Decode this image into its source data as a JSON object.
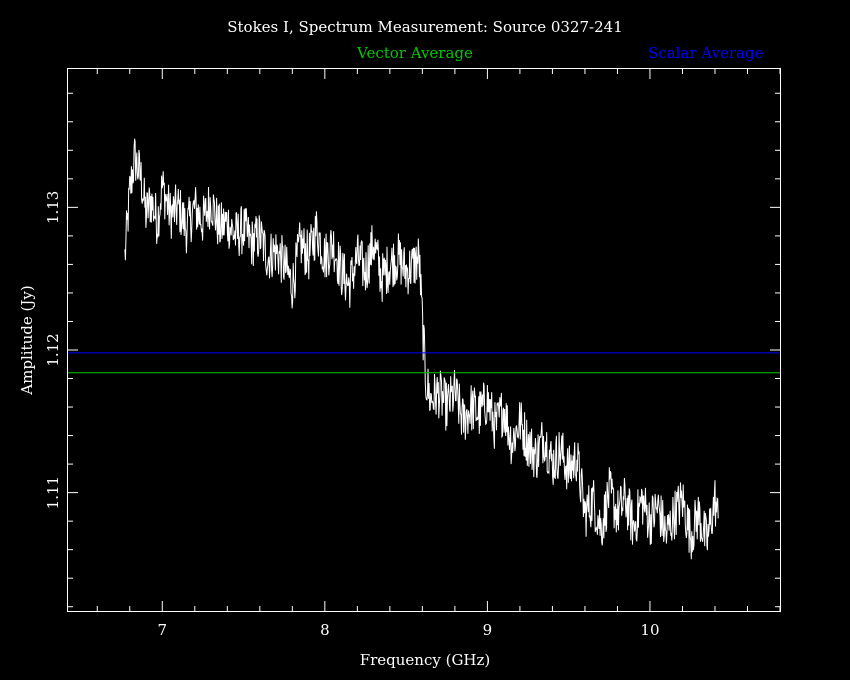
{
  "chart_data": {
    "type": "line",
    "title": "Stokes I, Spectrum Measurement: Source 0327-241",
    "xlabel": "Frequency (GHz)",
    "ylabel": "Amplitude (Jy)",
    "xlim": [
      6.42,
      10.8
    ],
    "ylim": [
      1.1017,
      1.1397
    ],
    "x_ticks": [
      7,
      8,
      9,
      10
    ],
    "y_ticks": [
      1.11,
      1.12,
      1.13
    ],
    "x_tick_labels": [
      "7",
      "8",
      "9",
      "10"
    ],
    "y_tick_labels": [
      "1.11",
      "1.12",
      "1.13"
    ],
    "grid": false,
    "background": "#000000",
    "legend_position": "top",
    "series": [
      {
        "name": "Vector Average",
        "color": "#00c800",
        "kind": "horizontal-line",
        "value": 1.1184
      },
      {
        "name": "Scalar Average",
        "color": "#0000ff",
        "kind": "horizontal-line",
        "value": 1.1198
      },
      {
        "color": "#ffffff",
        "kind": "spectrum",
        "x": [
          6.77,
          6.8,
          6.83,
          6.87,
          6.9,
          6.93,
          6.97,
          7.0,
          7.05,
          7.1,
          7.15,
          7.2,
          7.25,
          7.3,
          7.35,
          7.4,
          7.45,
          7.5,
          7.55,
          7.6,
          7.65,
          7.7,
          7.75,
          7.8,
          7.85,
          7.9,
          7.95,
          8.0,
          8.05,
          8.1,
          8.15,
          8.2,
          8.25,
          8.3,
          8.35,
          8.4,
          8.45,
          8.5,
          8.55,
          8.58,
          8.6,
          8.62,
          8.65,
          8.7,
          8.75,
          8.8,
          8.85,
          8.9,
          8.95,
          9.0,
          9.05,
          9.1,
          9.15,
          9.2,
          9.25,
          9.3,
          9.35,
          9.4,
          9.45,
          9.5,
          9.55,
          9.6,
          9.65,
          9.7,
          9.75,
          9.8,
          9.85,
          9.9,
          9.95,
          10.0,
          10.05,
          10.1,
          10.15,
          10.2,
          10.25,
          10.3,
          10.35,
          10.4,
          10.42
        ],
        "values": [
          1.1265,
          1.131,
          1.1335,
          1.132,
          1.1295,
          1.1305,
          1.129,
          1.1315,
          1.1295,
          1.13,
          1.1285,
          1.13,
          1.129,
          1.1305,
          1.1285,
          1.129,
          1.128,
          1.1285,
          1.1275,
          1.128,
          1.1265,
          1.127,
          1.126,
          1.1245,
          1.1275,
          1.1265,
          1.1285,
          1.1265,
          1.1275,
          1.1255,
          1.1245,
          1.1265,
          1.1255,
          1.1275,
          1.125,
          1.126,
          1.1265,
          1.1255,
          1.126,
          1.1265,
          1.122,
          1.118,
          1.1165,
          1.117,
          1.116,
          1.117,
          1.115,
          1.116,
          1.1155,
          1.1165,
          1.1145,
          1.116,
          1.1135,
          1.115,
          1.1135,
          1.1125,
          1.114,
          1.112,
          1.113,
          1.1115,
          1.1125,
          1.1085,
          1.1095,
          1.1075,
          1.11,
          1.1085,
          1.1095,
          1.1075,
          1.1095,
          1.108,
          1.109,
          1.107,
          1.1085,
          1.1095,
          1.107,
          1.1085,
          1.1065,
          1.1095,
          1.108
        ]
      }
    ]
  }
}
